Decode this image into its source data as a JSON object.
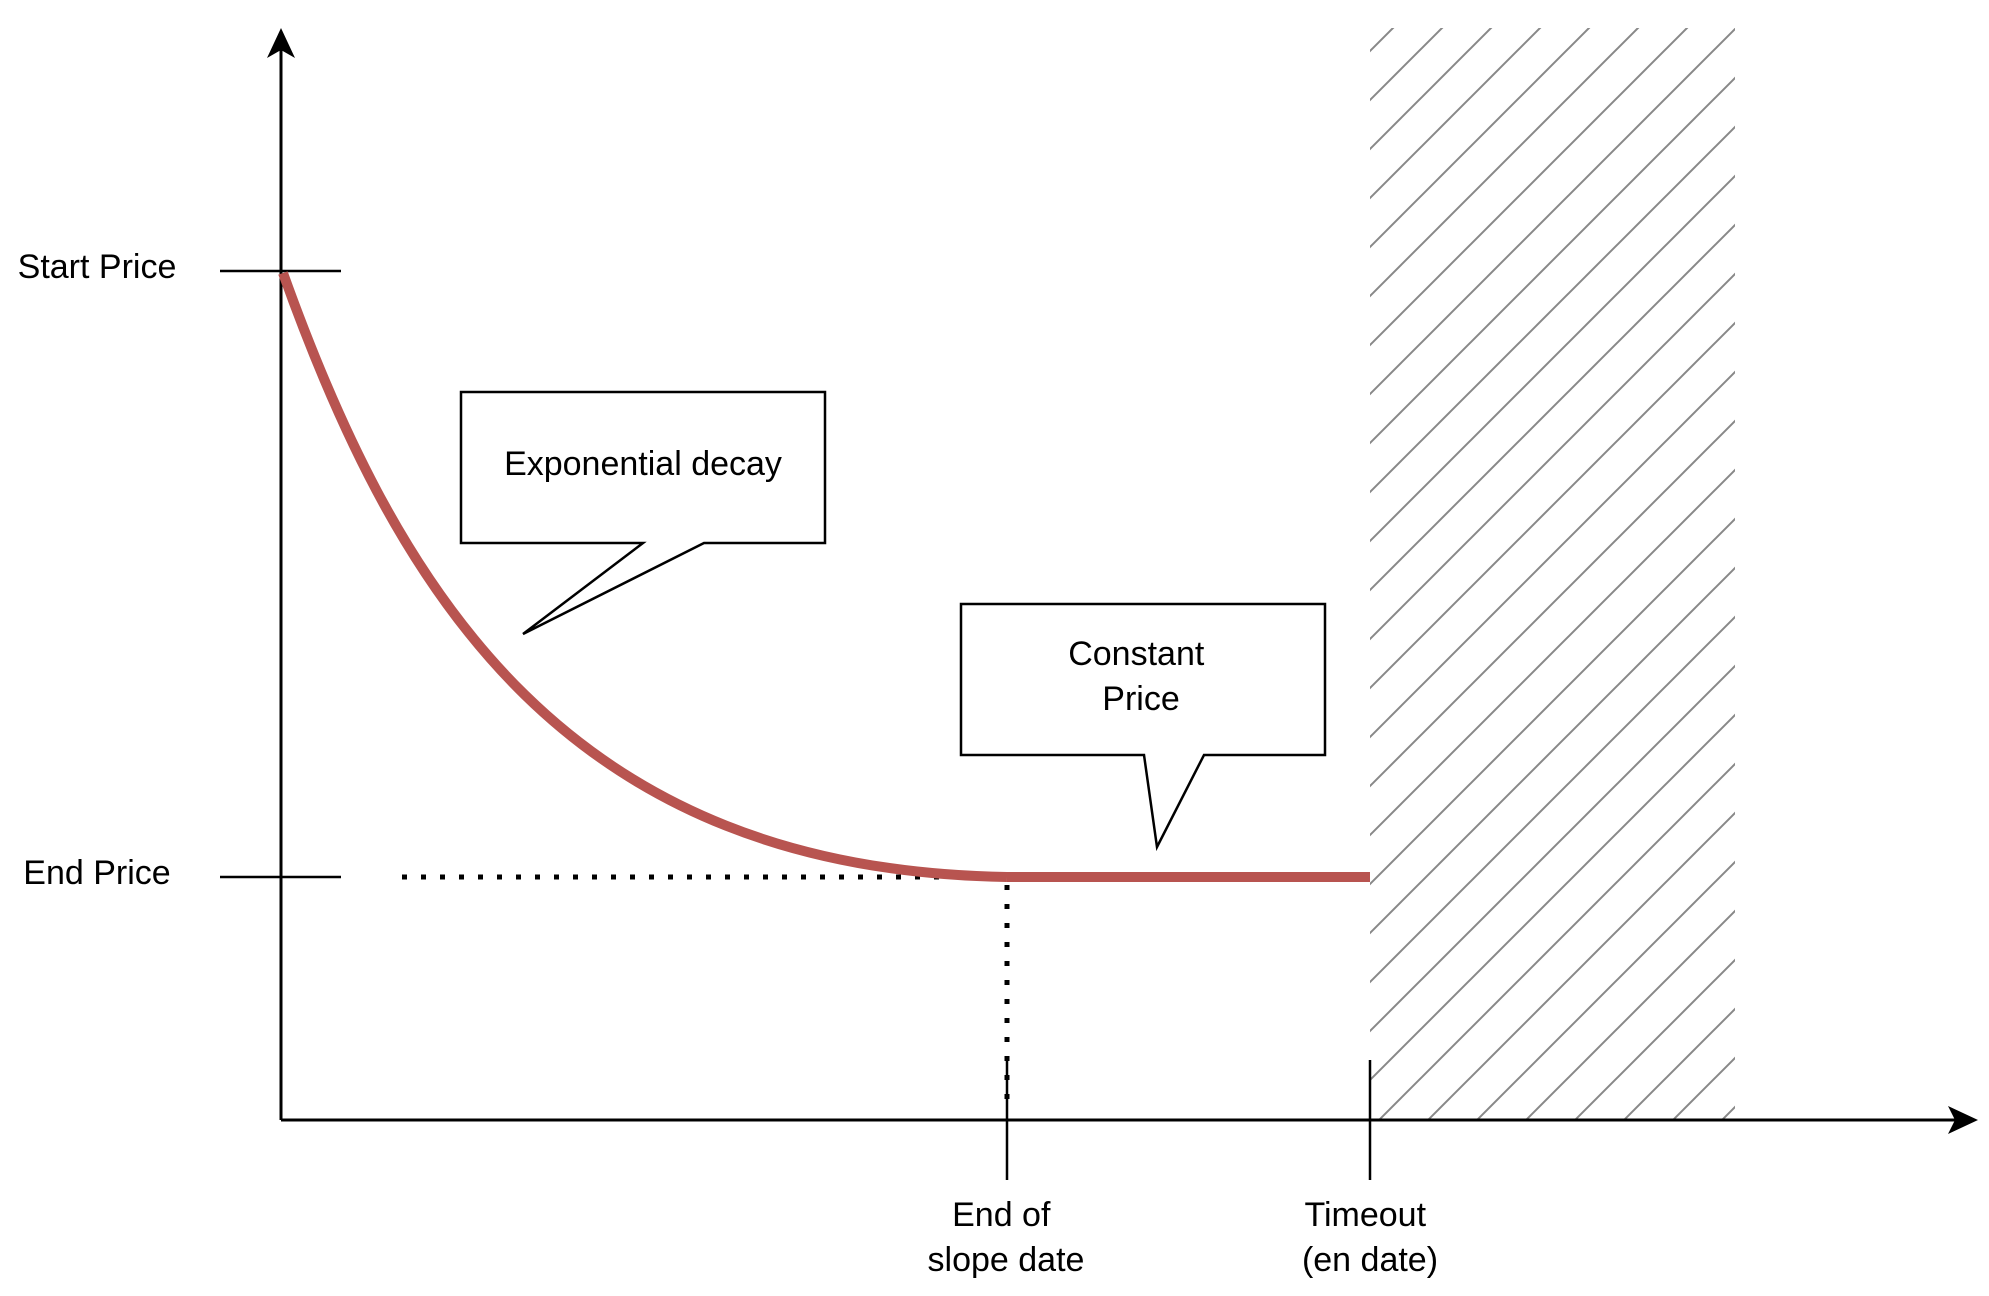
{
  "y_ticks": {
    "start_price": "Start Price",
    "end_price": "End Price"
  },
  "x_ticks": {
    "end_of_slope": [
      "End of",
      "slope date"
    ],
    "timeout": [
      "Timeout",
      "(en date)"
    ]
  },
  "callouts": {
    "exponential_decay": "Exponential decay",
    "constant_price": [
      "Constant",
      "Price"
    ]
  },
  "colors": {
    "curve": "#b85450",
    "axis": "#000000",
    "hatch": "#888888"
  }
}
